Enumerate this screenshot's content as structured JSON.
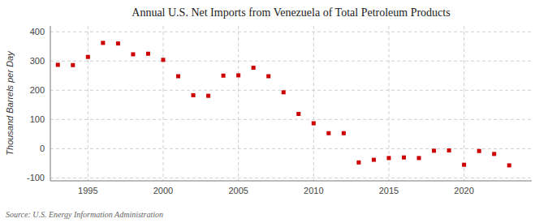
{
  "chart_data": {
    "type": "scatter",
    "title": "Annual U.S. Net Imports from Venezuela of Total Petroleum Products",
    "y_label": "Thousand Barrels per Day",
    "annotations": [
      "Source: U.S. Energy Information Administration"
    ],
    "x": [
      1993,
      1994,
      1995,
      1996,
      1997,
      1998,
      1999,
      2000,
      2001,
      2002,
      2003,
      2004,
      2005,
      2006,
      2007,
      2008,
      2009,
      2010,
      2011,
      2012,
      2013,
      2014,
      2015,
      2016,
      2017,
      2018,
      2019,
      2020,
      2021,
      2022,
      2023
    ],
    "values": [
      287,
      286,
      314,
      362,
      360,
      323,
      325,
      304,
      248,
      183,
      181,
      250,
      251,
      277,
      248,
      193,
      119,
      87,
      53,
      53,
      -47,
      -38,
      -32,
      -30,
      -32,
      -7,
      -6,
      -55,
      -8,
      -18,
      -57
    ],
    "color": "#cc0000",
    "marker": "square",
    "xlim": [
      1992.5,
      2024.5
    ],
    "ylim": [
      -110,
      420
    ],
    "xticks": [
      1995,
      2000,
      2005,
      2010,
      2015,
      2020
    ],
    "yticks": [
      -100,
      0,
      100,
      200,
      300,
      400
    ],
    "grid": true
  }
}
